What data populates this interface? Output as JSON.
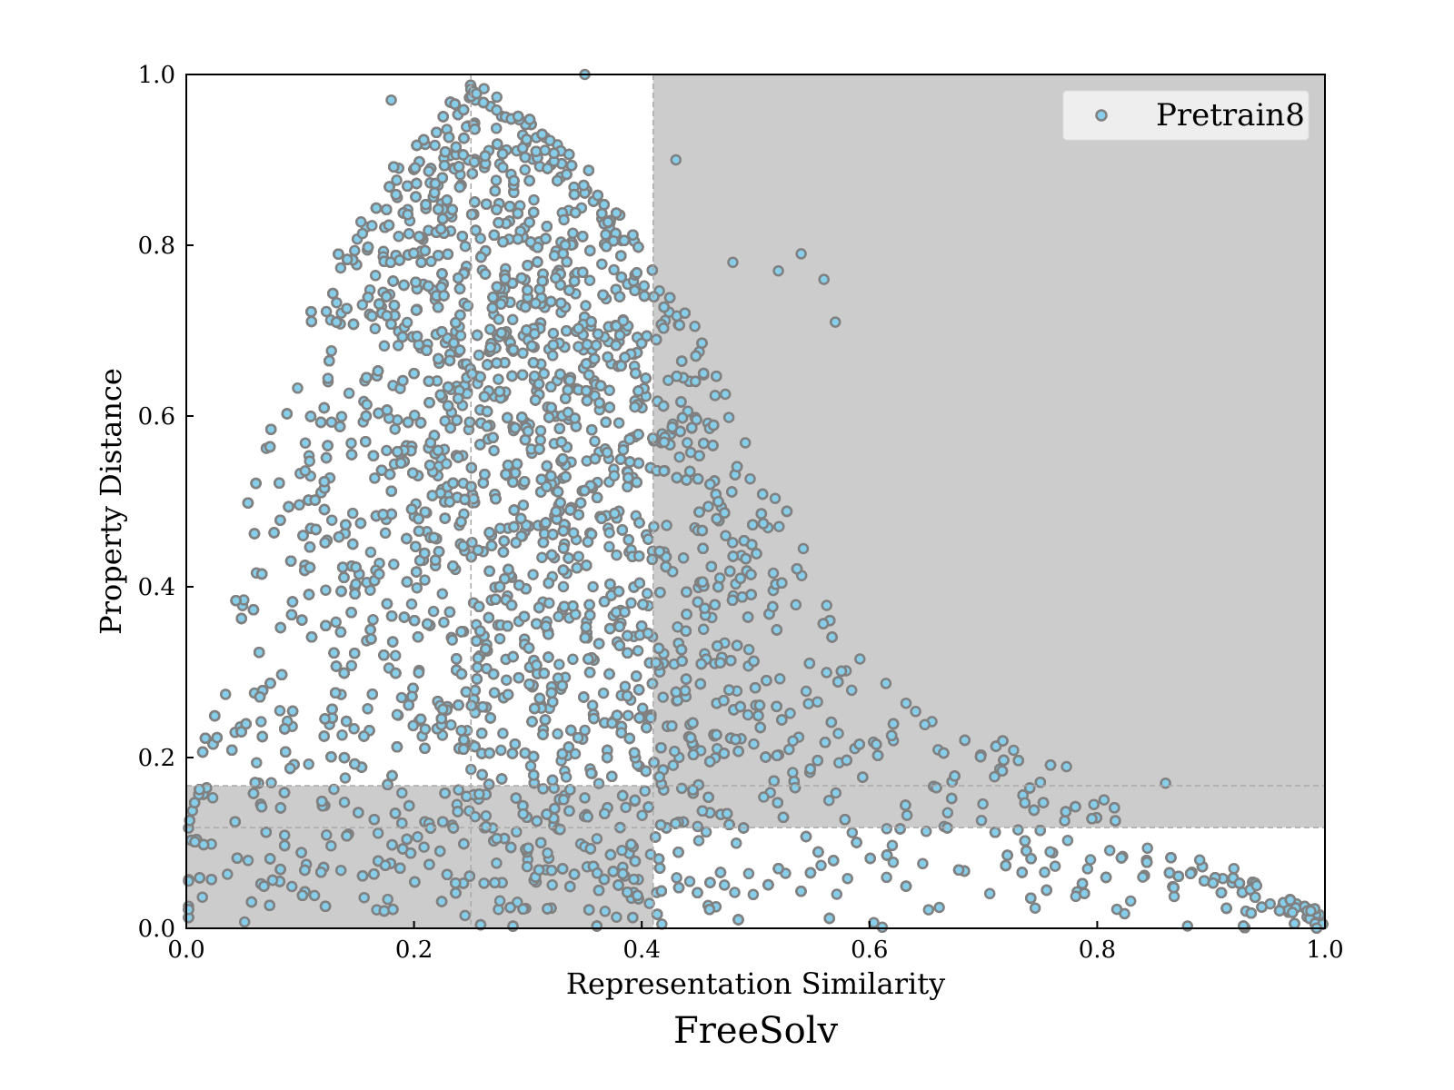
{
  "chart_data": {
    "type": "scatter",
    "title": "FreeSolv",
    "xlabel": "Representation Similarity",
    "ylabel": "Property Distance",
    "xlim": [
      0.0,
      1.0
    ],
    "ylim": [
      0.0,
      1.0
    ],
    "xticks": [
      "0.0",
      "0.2",
      "0.4",
      "0.6",
      "0.8",
      "1.0"
    ],
    "yticks": [
      "0.0",
      "0.2",
      "0.4",
      "0.6",
      "0.8",
      "1.0"
    ],
    "grid": false,
    "legend": {
      "position": "top-right",
      "entries": [
        "Pretrain8"
      ]
    },
    "series": [
      {
        "name": "Pretrain8",
        "marker_fill": "#87CEEB",
        "marker_edge": "#808080",
        "point_density_profile": {
          "description": "dense cloud",
          "x_peak": 0.3,
          "upper_envelope": [
            [
              0.0,
              0.12
            ],
            [
              0.05,
              0.48
            ],
            [
              0.1,
              0.72
            ],
            [
              0.2,
              0.93
            ],
            [
              0.25,
              0.99
            ],
            [
              0.3,
              0.97
            ],
            [
              0.35,
              0.9
            ],
            [
              0.4,
              0.8
            ],
            [
              0.45,
              0.7
            ],
            [
              0.5,
              0.55
            ],
            [
              0.55,
              0.45
            ],
            [
              0.6,
              0.3
            ],
            [
              0.65,
              0.26
            ],
            [
              0.7,
              0.23
            ],
            [
              0.75,
              0.21
            ],
            [
              0.8,
              0.18
            ],
            [
              0.85,
              0.1
            ],
            [
              0.9,
              0.08
            ],
            [
              0.95,
              0.05
            ],
            [
              1.0,
              0.02
            ]
          ]
        },
        "outliers": [
          [
            0.86,
            0.17
          ],
          [
            0.89,
            0.08
          ],
          [
            0.92,
            0.07
          ],
          [
            0.94,
            0.05
          ],
          [
            0.84,
            0.06
          ],
          [
            0.54,
            0.79
          ],
          [
            0.56,
            0.76
          ],
          [
            0.57,
            0.71
          ],
          [
            0.48,
            0.78
          ],
          [
            0.52,
            0.77
          ],
          [
            0.43,
            0.9
          ],
          [
            0.18,
            0.97
          ],
          [
            0.35,
            1.0
          ]
        ]
      }
    ],
    "shaded_regions": [
      {
        "x": [
          0.41,
          1.0
        ],
        "y": [
          0.118,
          1.0
        ],
        "color": "#cccccc"
      },
      {
        "x": [
          0.0,
          0.41
        ],
        "y": [
          0.0,
          0.167
        ],
        "color": "#cccccc"
      }
    ],
    "reference_lines": {
      "vertical": [
        0.25,
        0.41
      ],
      "horizontal": [
        0.118,
        0.167
      ],
      "style": "dashed",
      "color": "#aaaaaa"
    }
  }
}
